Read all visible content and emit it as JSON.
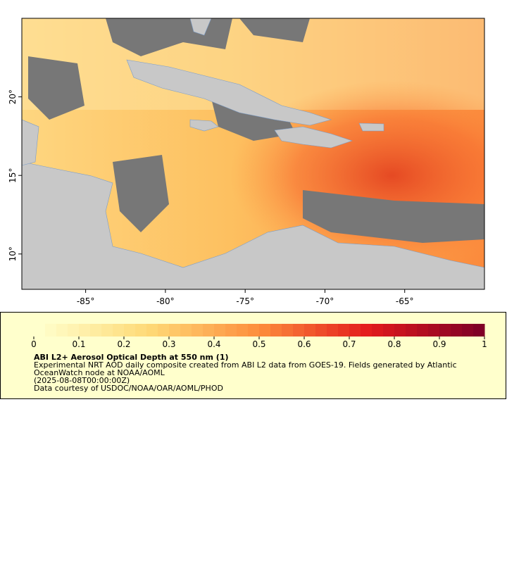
{
  "map": {
    "xlim": [
      -89,
      -60
    ],
    "ylim": [
      7.75,
      25
    ],
    "xticks": [
      {
        "value": -85,
        "label": "-85°"
      },
      {
        "value": -80,
        "label": "-80°"
      },
      {
        "value": -75,
        "label": "-75°"
      },
      {
        "value": -70,
        "label": "-70°"
      },
      {
        "value": -65,
        "label": "-65°"
      }
    ],
    "yticks": [
      {
        "value": 10,
        "label": "10°"
      },
      {
        "value": 15,
        "label": "15°"
      },
      {
        "value": 20,
        "label": "20°"
      }
    ]
  },
  "colorbar": {
    "lim": [
      0,
      1
    ],
    "ticks": [
      0,
      0.1,
      0.2,
      0.3,
      0.4,
      0.5,
      0.6,
      0.7,
      0.8,
      0.9,
      1
    ],
    "steps": 40,
    "stops": [
      "#ffffcc",
      "#fed976",
      "#fd8d3c",
      "#e31a1c",
      "#800026"
    ]
  },
  "legend": {
    "title": "ABI L2+ Aerosol Optical Depth at 550 nm (1)",
    "lines": [
      "Experimental NRT AOD daily composite created from ABI L2 data from GOES-19. Fields generated by Atlantic",
      "OceanWatch node at NOAA/AOML",
      "(2025-08-08T00:00:00Z)",
      "Data courtesy of USDOC/NOAA/OAR/AOML/PHOD"
    ]
  }
}
